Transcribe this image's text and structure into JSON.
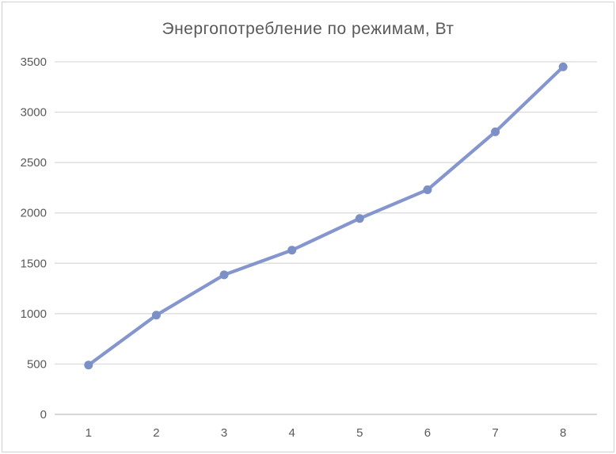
{
  "chart": {
    "title": "Энергопотребление по режимам, Вт"
  },
  "chart_data": {
    "type": "line",
    "title": "Энергопотребление по режимам, Вт",
    "categories": [
      "1",
      "2",
      "3",
      "4",
      "5",
      "6",
      "7",
      "8"
    ],
    "series": [
      {
        "name": "Энергопотребление",
        "values": [
          490,
          985,
          1385,
          1630,
          1945,
          2230,
          2805,
          3450
        ]
      }
    ],
    "xlabel": "",
    "ylabel": "",
    "ylim": [
      0,
      3500
    ],
    "ytick_step": 500,
    "ytick_labels": [
      "0",
      "500",
      "1000",
      "1500",
      "2000",
      "2500",
      "3000",
      "3500"
    ],
    "grid": true,
    "legend_position": "none",
    "colors": {
      "line": "#8496CD",
      "marker": "#7C90C7",
      "gridline": "#D9D9D9",
      "axis_line": "#BFBFBF",
      "text": "#595959",
      "frame_border": "#D2D2D2",
      "background": "#FFFFFF"
    }
  }
}
